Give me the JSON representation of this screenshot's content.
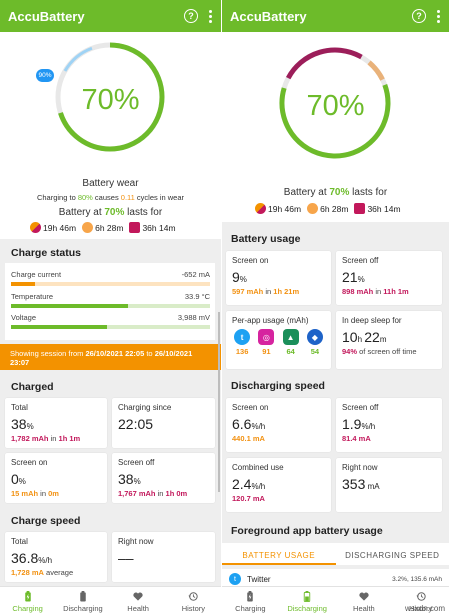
{
  "left": {
    "appbar": {
      "title": "AccuBattery"
    },
    "hero": {
      "percent": "70%",
      "wear_badge": "90%",
      "wear_title": "Battery wear",
      "wear_line": {
        "a": "Charging to ",
        "b": "80%",
        "c": " causes ",
        "d": "0.11",
        "e": " cycles in wear"
      },
      "lasts": {
        "a": "Battery at ",
        "b": "70%",
        "c": " lasts for"
      },
      "times": [
        "19h 46m",
        "6h 28m",
        "36h 14m"
      ]
    },
    "charge_status": {
      "title": "Charge status",
      "current": {
        "label": "Charge current",
        "value": "-652 mA",
        "fill": 0.12
      },
      "temperature": {
        "label": "Temperature",
        "value": "33.9 °C",
        "fill": 0.59
      },
      "voltage": {
        "label": "Voltage",
        "value": "3,988 mV",
        "fill": 0.48
      }
    },
    "banner": {
      "a": "Showing session from ",
      "b": "26/10/2021 22:05",
      "c": " to ",
      "d": "26/10/2021 23:07"
    },
    "charged": {
      "title": "Charged",
      "total": {
        "label": "Total",
        "value": "38",
        "unit": "%",
        "sub_a": "1,782 mAh",
        "sub_b": " in ",
        "sub_c": "1h 1m"
      },
      "since": {
        "label": "Charging since",
        "value": "22:05"
      },
      "screen_on": {
        "label": "Screen on",
        "value": "0",
        "unit": "%",
        "sub_a": "15 mAh",
        "sub_b": " in ",
        "sub_c": "0m"
      },
      "screen_off": {
        "label": "Screen off",
        "value": "38",
        "unit": "%",
        "sub_a": "1,767 mAh",
        "sub_b": " in ",
        "sub_c": "1h 0m"
      }
    },
    "charge_speed": {
      "title": "Charge speed",
      "total": {
        "label": "Total",
        "value": "36.8",
        "unit": "%/h",
        "sub_a": "1,728 mA",
        "sub_b": " average"
      },
      "right_now": {
        "label": "Right now",
        "value": "––"
      }
    },
    "nav": [
      {
        "label": "Charging",
        "icon": "battery-charging-icon"
      },
      {
        "label": "Discharging",
        "icon": "battery-icon"
      },
      {
        "label": "Health",
        "icon": "heart-icon"
      },
      {
        "label": "History",
        "icon": "history-icon"
      }
    ]
  },
  "right": {
    "appbar": {
      "title": "AccuBattery"
    },
    "hero": {
      "percent": "70%",
      "lasts": {
        "a": "Battery at ",
        "b": "70%",
        "c": " lasts for"
      },
      "times": [
        "19h 46m",
        "6h 28m",
        "36h 14m"
      ]
    },
    "battery_usage": {
      "title": "Battery usage",
      "screen_on": {
        "label": "Screen on",
        "value": "9",
        "unit": "%",
        "sub_a": "597 mAh",
        "sub_b": " in ",
        "sub_c": "1h 21m"
      },
      "screen_off": {
        "label": "Screen off",
        "value": "21",
        "unit": "%",
        "sub_a": "898 mAh",
        "sub_b": " in ",
        "sub_c": "11h 1m"
      },
      "per_app": {
        "label": "Per-app usage (mAh)",
        "apps": [
          "136",
          "91",
          "64",
          "54"
        ]
      },
      "deep_sleep": {
        "label": "In deep sleep for",
        "h": "10",
        "hu": "h ",
        "m": "22",
        "mu": "m",
        "sub_a": "94%",
        "sub_b": " of screen off time"
      }
    },
    "discharging_speed": {
      "title": "Discharging speed",
      "screen_on": {
        "label": "Screen on",
        "value": "6.6",
        "unit": "%/h",
        "sub": "440.1 mA"
      },
      "screen_off": {
        "label": "Screen off",
        "value": "1.9",
        "unit": "%/h",
        "sub": "81.4 mA"
      },
      "combined": {
        "label": "Combined use",
        "value": "2.4",
        "unit": "%/h",
        "sub": "120.7 mA"
      },
      "right_now": {
        "label": "Right now",
        "value": "353",
        "unit": " mA"
      }
    },
    "foreground": {
      "title": "Foreground app battery usage",
      "tab_usage": "BATTERY USAGE",
      "tab_speed": "DISCHARGING SPEED",
      "row_app": "Twitter",
      "row_value": "3.2%, 135.6 mAh"
    },
    "nav": [
      {
        "label": "Charging",
        "icon": "battery-charging-icon"
      },
      {
        "label": "Discharging",
        "icon": "battery-icon"
      },
      {
        "label": "Health",
        "icon": "heart-icon"
      },
      {
        "label": "History",
        "icon": "history-icon"
      }
    ]
  },
  "colors": {
    "accent_green": "#6dbb2a",
    "orange": "#f39200",
    "crimson": "#c2185b"
  },
  "watermark": "wsxdn.com"
}
